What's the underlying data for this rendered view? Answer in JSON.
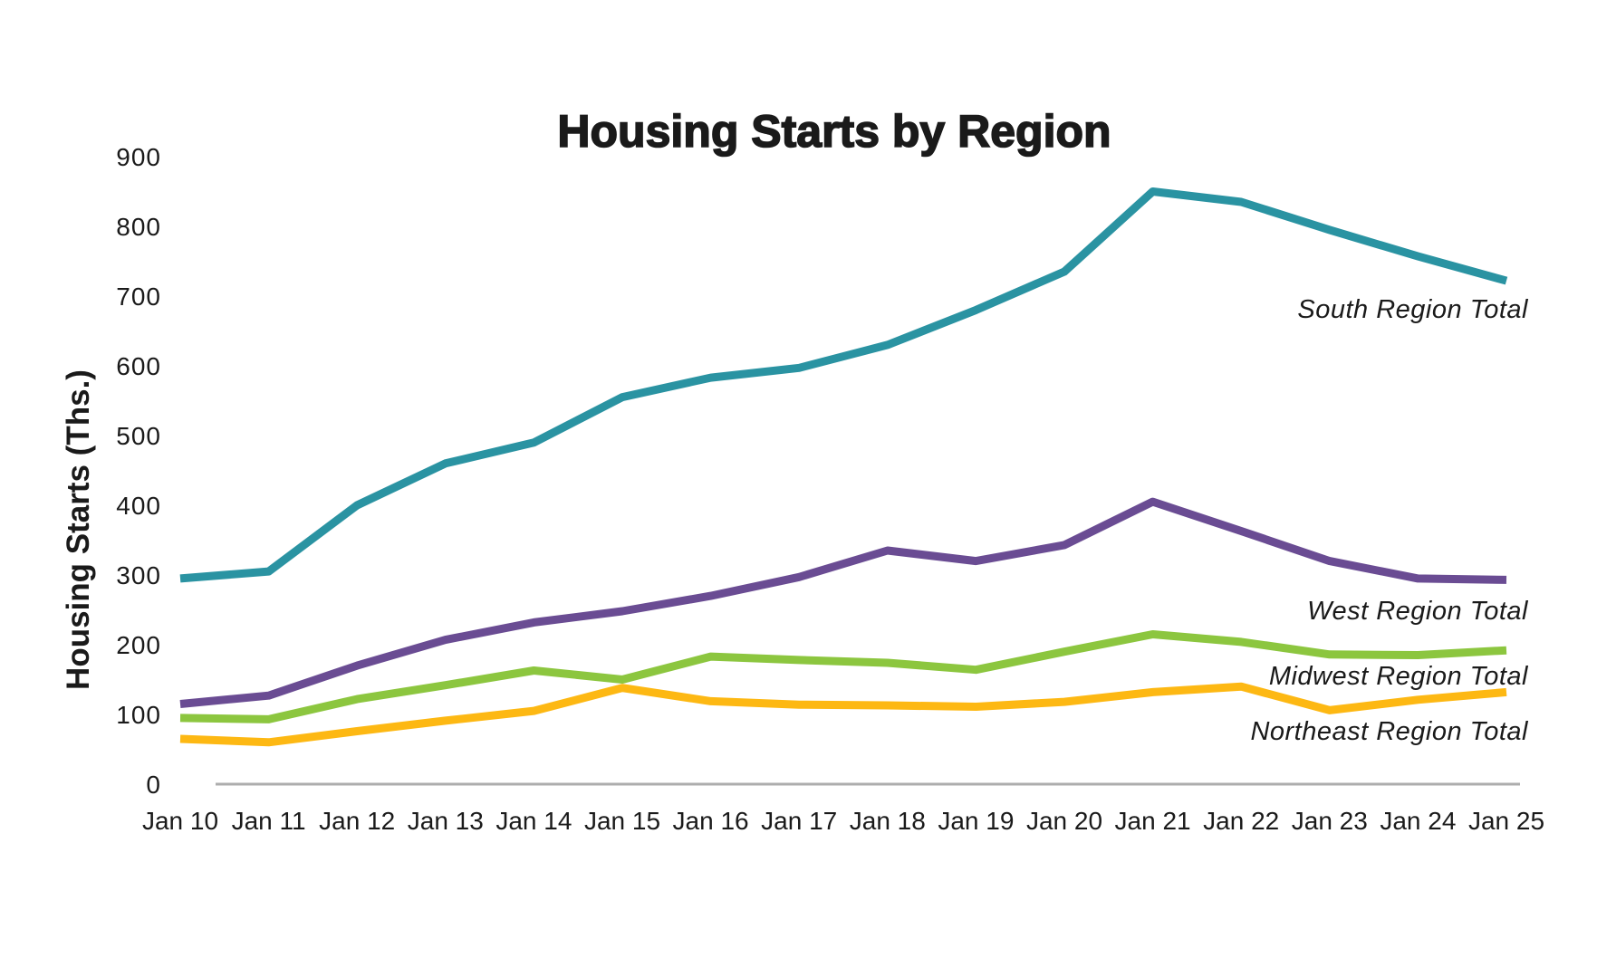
{
  "chart_data": {
    "type": "line",
    "title": "Housing Starts by Region",
    "ylabel": "Housing Starts (Ths.)",
    "xlabel": "",
    "ylim": [
      0,
      900
    ],
    "ytick_interval": 100,
    "yticks": [
      0,
      100,
      200,
      300,
      400,
      500,
      600,
      700,
      800,
      900
    ],
    "grid": false,
    "legend_position": "inline-right",
    "x_labels": [
      "Jan 10",
      "Jan 11",
      "Jan 12",
      "Jan 13",
      "Jan 14",
      "Jan 15",
      "Jan 16",
      "Jan 17",
      "Jan 18",
      "Jan 19",
      "Jan 20",
      "Jan 21",
      "Jan 22",
      "Jan 23",
      "Jan 24",
      "Jan 25"
    ],
    "series": [
      {
        "name": "South Region Total",
        "color": "#2A93A2",
        "values": [
          295,
          305,
          400,
          460,
          490,
          555,
          583,
          597,
          630,
          680,
          735,
          850,
          835,
          795,
          757,
          722
        ]
      },
      {
        "name": "West Region Total",
        "color": "#6A4C93",
        "values": [
          115,
          127,
          170,
          207,
          232,
          248,
          270,
          297,
          335,
          320,
          343,
          405,
          363,
          320,
          295,
          293
        ]
      },
      {
        "name": "Midwest Region Total",
        "color": "#8CC63F",
        "values": [
          95,
          93,
          122,
          142,
          163,
          150,
          183,
          178,
          174,
          164,
          190,
          215,
          204,
          186,
          185,
          192
        ]
      },
      {
        "name": "Northeast Region Total",
        "color": "#FDB813",
        "values": [
          65,
          60,
          76,
          91,
          105,
          138,
          119,
          114,
          113,
          111,
          118,
          132,
          140,
          106,
          121,
          132
        ]
      }
    ],
    "axis_color": "#ADADAD",
    "text_color": "#1a1a1a"
  }
}
